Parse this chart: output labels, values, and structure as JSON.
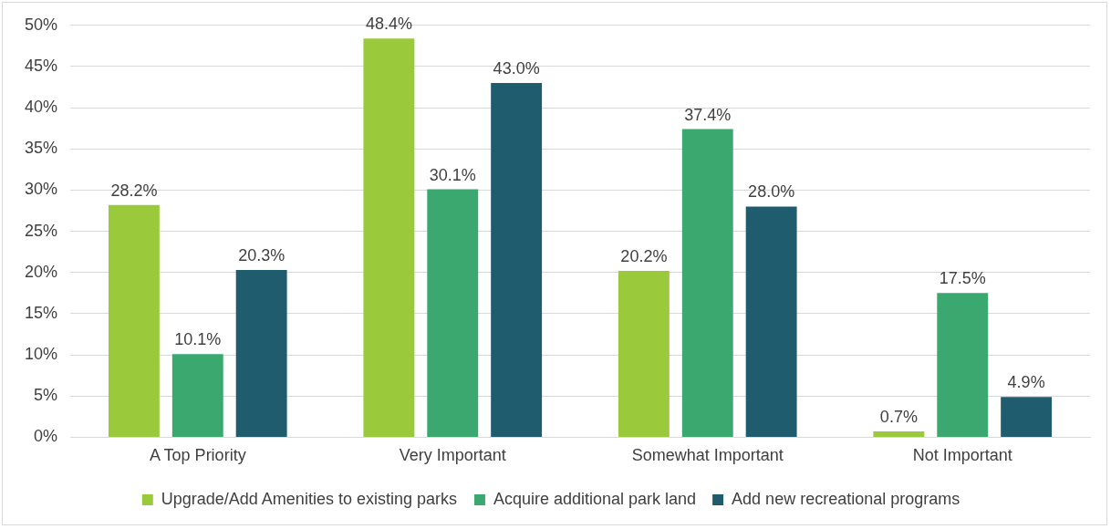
{
  "chart_data": {
    "type": "bar",
    "categories": [
      "A Top Priority",
      "Very Important",
      "Somewhat Important",
      "Not Important"
    ],
    "series": [
      {
        "name": "Upgrade/Add Amenities to existing parks",
        "color": "#9aca3c",
        "values": [
          28.2,
          48.4,
          20.2,
          0.7
        ],
        "value_labels": [
          "28.2%",
          "48.4%",
          "20.2%",
          "0.7%"
        ]
      },
      {
        "name": "Acquire additional park land",
        "color": "#3aa86f",
        "values": [
          10.1,
          30.1,
          37.4,
          17.5
        ],
        "value_labels": [
          "10.1%",
          "30.1%",
          "37.4%",
          "17.5%"
        ]
      },
      {
        "name": "Add new recreational programs",
        "color": "#1f5c6e",
        "values": [
          20.3,
          43.0,
          28.0,
          4.9
        ],
        "value_labels": [
          "20.3%",
          "43.0%",
          "28.0%",
          "4.9%"
        ]
      }
    ],
    "ylim": [
      0,
      50
    ],
    "yticks": [
      {
        "value": 0,
        "label": "0%"
      },
      {
        "value": 5,
        "label": "5%"
      },
      {
        "value": 10,
        "label": "10%"
      },
      {
        "value": 15,
        "label": "15%"
      },
      {
        "value": 20,
        "label": "20%"
      },
      {
        "value": 25,
        "label": "25%"
      },
      {
        "value": 30,
        "label": "30%"
      },
      {
        "value": 35,
        "label": "35%"
      },
      {
        "value": 40,
        "label": "40%"
      },
      {
        "value": 45,
        "label": "45%"
      },
      {
        "value": 50,
        "label": "50%"
      }
    ],
    "grid": "y",
    "legend": "bottom"
  }
}
